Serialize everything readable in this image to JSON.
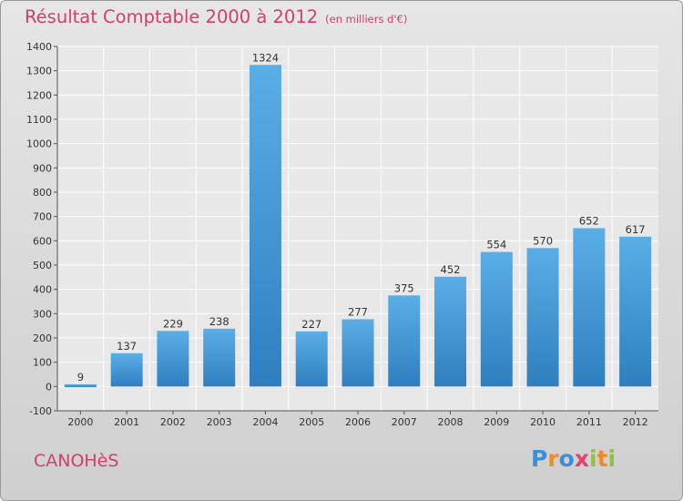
{
  "header": {
    "title": "Résultat Comptable 2000 à 2012",
    "subtitle": "(en milliers d'€)"
  },
  "footer": {
    "commune": "CANOHèS",
    "logo_letters": [
      "P",
      "r",
      "o",
      "x",
      "i",
      "t",
      "i"
    ],
    "logo_colors": [
      "#3a8fd6",
      "#f08a24",
      "#3a8fd6",
      "#e83e6c",
      "#8bc53f",
      "#f08a24",
      "#8bc53f"
    ]
  },
  "colors": {
    "title": "#d13e6b",
    "bar_top": "#5aaee6",
    "bar_bottom": "#2f7fc0",
    "plot_bg": "#e8e8e8",
    "grid": "#ffffff"
  },
  "chart_data": {
    "type": "bar",
    "title": "Résultat Comptable 2000 à 2012",
    "subtitle": "(en milliers d'€)",
    "categories": [
      "2000",
      "2001",
      "2002",
      "2003",
      "2004",
      "2005",
      "2006",
      "2007",
      "2008",
      "2009",
      "2010",
      "2011",
      "2012"
    ],
    "values": [
      9,
      137,
      229,
      238,
      1324,
      227,
      277,
      375,
      452,
      554,
      570,
      652,
      617
    ],
    "ylim": [
      -100,
      1400
    ],
    "yticks": [
      -100,
      0,
      100,
      200,
      300,
      400,
      500,
      600,
      700,
      800,
      900,
      1000,
      1100,
      1200,
      1300,
      1400
    ],
    "data_labels": true,
    "grid": true,
    "xlabel": "",
    "ylabel": ""
  }
}
